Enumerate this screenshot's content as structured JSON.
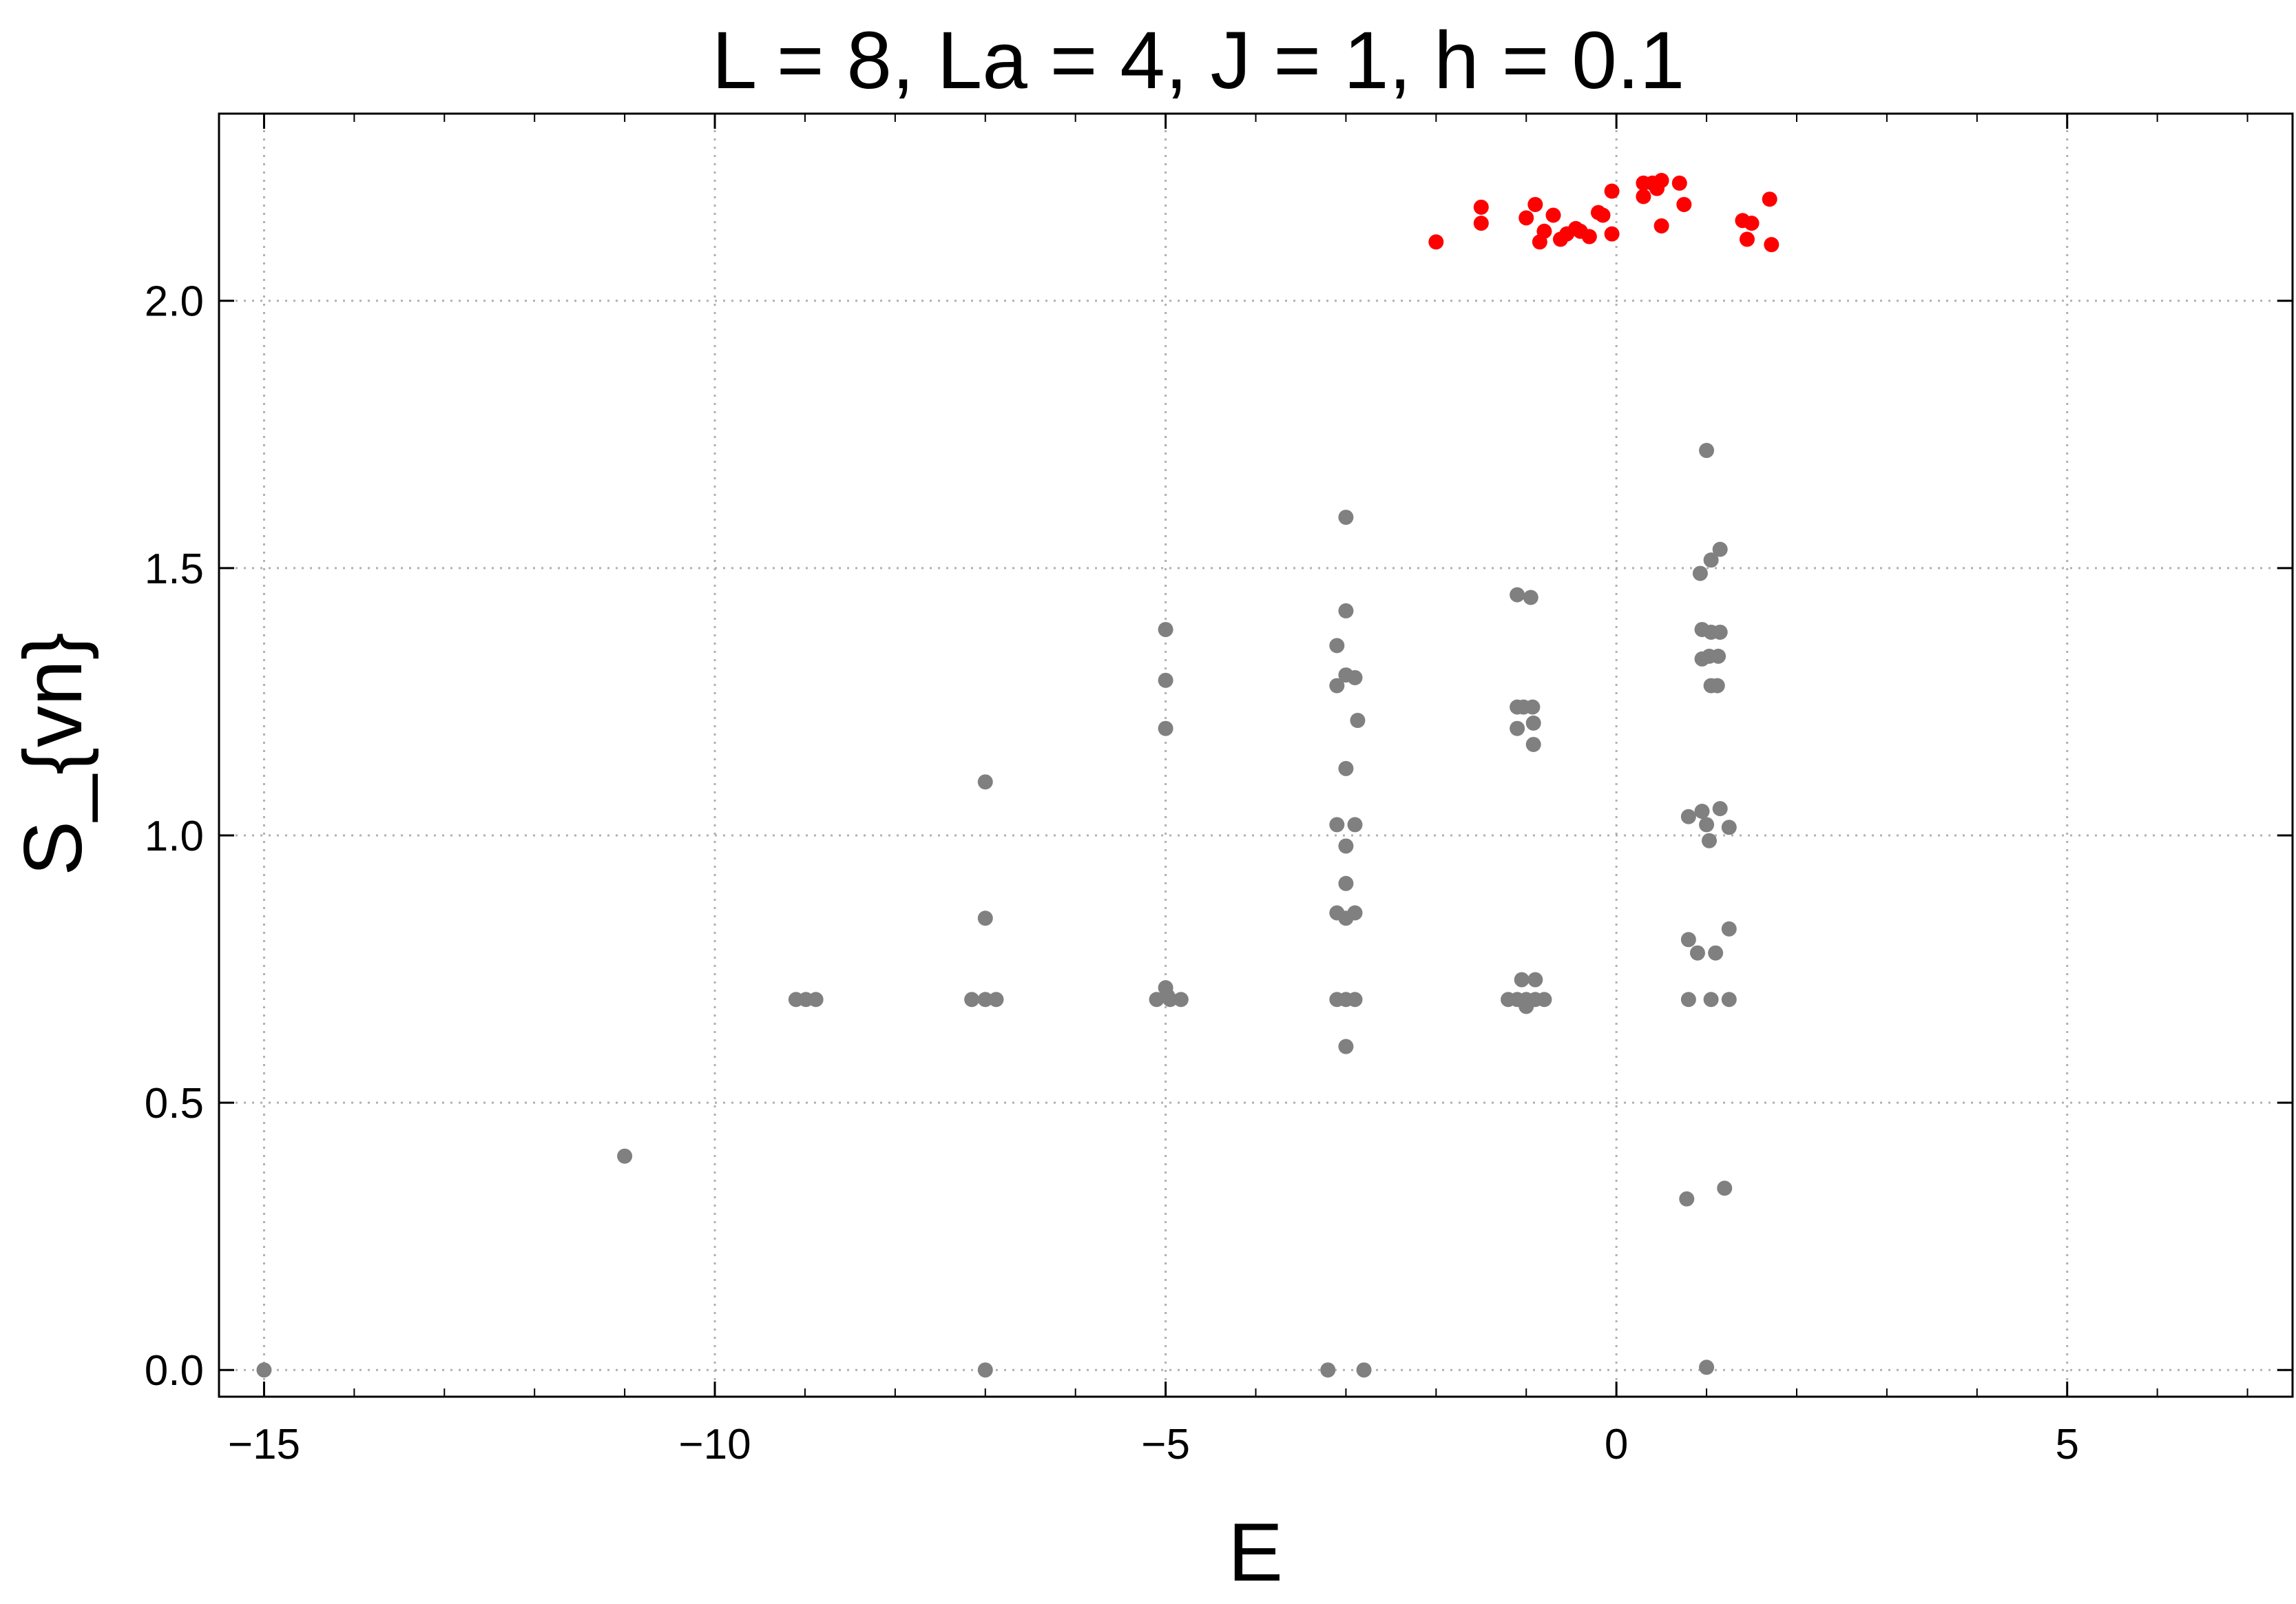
{
  "chart_data": {
    "type": "scatter",
    "title": "L = 8, La = 4, J = 1, h = 0.1",
    "xlabel": "E",
    "ylabel": "S_{vn}",
    "xlim": [
      -15.5,
      7.5
    ],
    "ylim": [
      -0.05,
      2.35
    ],
    "grid": true,
    "x_ticks": [
      -15,
      -10,
      -5,
      0,
      5
    ],
    "x_tick_labels": [
      "−15",
      "−10",
      "−5",
      "0",
      "5"
    ],
    "y_ticks": [
      0.0,
      0.5,
      1.0,
      1.5,
      2.0
    ],
    "y_tick_labels": [
      "0.0",
      "0.5",
      "1.0",
      "1.5",
      "2.0"
    ],
    "colors": {
      "gray_points": "#808080",
      "red_points": "#ff0000",
      "grid": "#b0b0b0",
      "frame": "#000000"
    },
    "series": [
      {
        "color": "#808080",
        "points": [
          [
            -15.0,
            0.0
          ],
          [
            -11.0,
            0.4
          ],
          [
            -9.1,
            0.693
          ],
          [
            -8.99,
            0.693
          ],
          [
            -8.88,
            0.693
          ],
          [
            -7.0,
            1.1
          ],
          [
            -7.0,
            0.845
          ],
          [
            -7.0,
            0.0
          ],
          [
            -7.15,
            0.693
          ],
          [
            -7.0,
            0.693
          ],
          [
            -6.88,
            0.693
          ],
          [
            -5.0,
            1.385
          ],
          [
            -5.0,
            1.29
          ],
          [
            -5.0,
            1.2
          ],
          [
            -5.0,
            0.715
          ],
          [
            -5.1,
            0.693
          ],
          [
            -4.95,
            0.693
          ],
          [
            -4.83,
            0.693
          ],
          [
            -4.98,
            0.7
          ],
          [
            -3.0,
            1.595
          ],
          [
            -3.0,
            1.42
          ],
          [
            -3.1,
            1.355
          ],
          [
            -3.1,
            1.28
          ],
          [
            -3.0,
            1.3
          ],
          [
            -2.9,
            1.295
          ],
          [
            -2.87,
            1.215
          ],
          [
            -3.0,
            1.125
          ],
          [
            -3.1,
            1.02
          ],
          [
            -2.9,
            1.02
          ],
          [
            -3.0,
            0.98
          ],
          [
            -3.0,
            0.91
          ],
          [
            -3.1,
            0.855
          ],
          [
            -3.0,
            0.845
          ],
          [
            -2.9,
            0.855
          ],
          [
            -3.1,
            0.693
          ],
          [
            -3.0,
            0.693
          ],
          [
            -2.9,
            0.693
          ],
          [
            -3.0,
            0.605
          ],
          [
            -3.2,
            0.0
          ],
          [
            -2.8,
            0.0
          ],
          [
            -1.1,
            1.45
          ],
          [
            -0.95,
            1.445
          ],
          [
            -1.1,
            1.24
          ],
          [
            -1.03,
            1.24
          ],
          [
            -0.93,
            1.24
          ],
          [
            -1.1,
            1.2
          ],
          [
            -0.92,
            1.21
          ],
          [
            -0.92,
            1.17
          ],
          [
            -1.05,
            0.73
          ],
          [
            -0.9,
            0.73
          ],
          [
            -1.2,
            0.693
          ],
          [
            -1.1,
            0.693
          ],
          [
            -1.0,
            0.693
          ],
          [
            -0.9,
            0.693
          ],
          [
            -0.8,
            0.693
          ],
          [
            -1.0,
            0.68
          ],
          [
            1.0,
            1.72
          ],
          [
            1.05,
            1.515
          ],
          [
            0.93,
            1.49
          ],
          [
            1.15,
            1.535
          ],
          [
            0.95,
            1.385
          ],
          [
            1.05,
            1.38
          ],
          [
            1.15,
            1.38
          ],
          [
            0.95,
            1.33
          ],
          [
            1.03,
            1.335
          ],
          [
            1.13,
            1.335
          ],
          [
            1.05,
            1.28
          ],
          [
            1.12,
            1.28
          ],
          [
            0.8,
            1.035
          ],
          [
            0.95,
            1.045
          ],
          [
            1.15,
            1.05
          ],
          [
            1.0,
            1.02
          ],
          [
            1.25,
            1.015
          ],
          [
            1.03,
            0.99
          ],
          [
            0.8,
            0.805
          ],
          [
            0.9,
            0.78
          ],
          [
            1.1,
            0.78
          ],
          [
            1.25,
            0.825
          ],
          [
            0.8,
            0.693
          ],
          [
            1.05,
            0.693
          ],
          [
            1.25,
            0.693
          ],
          [
            0.78,
            0.32
          ],
          [
            1.2,
            0.34
          ],
          [
            1.0,
            0.005
          ]
        ]
      },
      {
        "color": "#ff0000",
        "points": [
          [
            -2.0,
            2.11
          ],
          [
            -1.5,
            2.175
          ],
          [
            -1.5,
            2.145
          ],
          [
            -1.0,
            2.155
          ],
          [
            -0.9,
            2.18
          ],
          [
            -0.85,
            2.11
          ],
          [
            -0.8,
            2.13
          ],
          [
            -0.7,
            2.16
          ],
          [
            -0.62,
            2.115
          ],
          [
            -0.55,
            2.125
          ],
          [
            -0.45,
            2.135
          ],
          [
            -0.4,
            2.13
          ],
          [
            -0.3,
            2.12
          ],
          [
            -0.2,
            2.165
          ],
          [
            -0.15,
            2.16
          ],
          [
            -0.05,
            2.125
          ],
          [
            -0.05,
            2.205
          ],
          [
            0.3,
            2.22
          ],
          [
            0.3,
            2.195
          ],
          [
            0.4,
            2.22
          ],
          [
            0.45,
            2.21
          ],
          [
            0.5,
            2.225
          ],
          [
            0.5,
            2.14
          ],
          [
            0.7,
            2.22
          ],
          [
            0.75,
            2.18
          ],
          [
            1.4,
            2.15
          ],
          [
            1.45,
            2.115
          ],
          [
            1.5,
            2.145
          ],
          [
            1.7,
            2.19
          ],
          [
            1.72,
            2.105
          ]
        ]
      }
    ]
  }
}
